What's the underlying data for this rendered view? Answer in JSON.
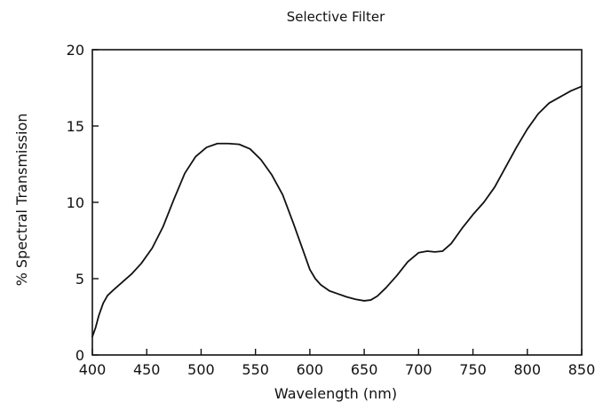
{
  "chart_data": {
    "type": "line",
    "title": "Selective Filter",
    "xlabel": "Wavelength (nm)",
    "ylabel": "% Spectral Transmission",
    "xlim": [
      400,
      850
    ],
    "ylim": [
      0,
      20
    ],
    "xticks": [
      400,
      450,
      500,
      550,
      600,
      650,
      700,
      750,
      800,
      850
    ],
    "yticks": [
      0,
      5,
      10,
      15,
      20
    ],
    "grid": false,
    "legend": "none",
    "line_color": "#111111",
    "series": [
      {
        "x": [
          400,
          403,
          406,
          410,
          414,
          420,
          428,
          436,
          445,
          455,
          465,
          475,
          485,
          495,
          505,
          515,
          525,
          535,
          545,
          555,
          565,
          575,
          585,
          595,
          600,
          605,
          610,
          618,
          626,
          634,
          642,
          650,
          656,
          662,
          670,
          680,
          690,
          700,
          708,
          715,
          722,
          730,
          740,
          750,
          760,
          770,
          780,
          790,
          800,
          810,
          820,
          830,
          840,
          850
        ],
        "y": [
          1.2,
          1.8,
          2.6,
          3.4,
          3.9,
          4.3,
          4.8,
          5.3,
          6.0,
          7.0,
          8.4,
          10.2,
          11.9,
          13.0,
          13.6,
          13.85,
          13.85,
          13.8,
          13.5,
          12.8,
          11.8,
          10.5,
          8.6,
          6.6,
          5.6,
          5.0,
          4.6,
          4.2,
          4.0,
          3.8,
          3.65,
          3.55,
          3.6,
          3.85,
          4.4,
          5.2,
          6.1,
          6.7,
          6.8,
          6.75,
          6.8,
          7.3,
          8.3,
          9.2,
          10.0,
          11.0,
          12.3,
          13.6,
          14.8,
          15.8,
          16.5,
          16.9,
          17.3,
          17.6
        ]
      }
    ]
  }
}
